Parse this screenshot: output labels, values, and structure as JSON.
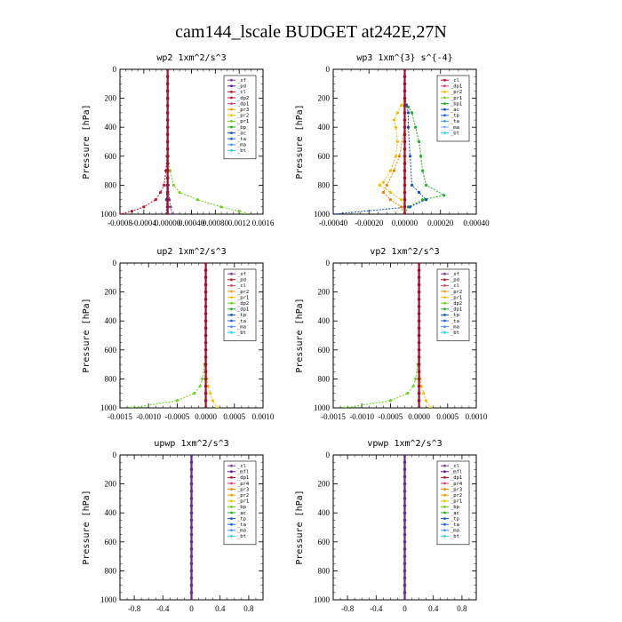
{
  "page_title": "cam144_lscale  BUDGET at242E,27N",
  "chart_data": [
    {
      "type": "line",
      "title": "wp2   1xm^2/s^3",
      "ylabel": "Pressure [hPa]",
      "ylim": [
        1000,
        0
      ],
      "yticks": [
        "0",
        "200",
        "400",
        "600",
        "800",
        "1000"
      ],
      "xlim": [
        -0.0008,
        0.0016
      ],
      "xticks": [
        "-0.0008",
        "-0.0004",
        "0.00000",
        "0.00040",
        "0.00080",
        "0.0012",
        "0.0016"
      ],
      "legend": [
        {
          "name": "_sf",
          "color": "#7b3fa0"
        },
        {
          "name": "_pd",
          "color": "#5a1a8a"
        },
        {
          "name": "_cl",
          "color": "#c0102a"
        },
        {
          "name": "_dp2",
          "color": "#c0102a"
        },
        {
          "name": "_dp1",
          "color": "#e0406a"
        },
        {
          "name": "_pr3",
          "color": "#f0a000"
        },
        {
          "name": "_pr2",
          "color": "#f0c000"
        },
        {
          "name": "_pr1",
          "color": "#70d020"
        },
        {
          "name": "_bp",
          "color": "#20b020"
        },
        {
          "name": "_ac",
          "color": "#1050c0"
        },
        {
          "name": "_ta",
          "color": "#2060e0"
        },
        {
          "name": "_ma",
          "color": "#5090ff"
        },
        {
          "name": "_bt",
          "color": "#30d0e0"
        }
      ],
      "series": [
        {
          "name": "_cl",
          "color": "#c0102a",
          "y": [
            0,
            200,
            400,
            600,
            700,
            800,
            850,
            900,
            950,
            980,
            1000
          ],
          "x": [
            0,
            0,
            0,
            -1e-05,
            -3e-05,
            -6e-05,
            -0.00012,
            -0.0002,
            -0.0004,
            -0.0006,
            -0.0008
          ]
        },
        {
          "name": "_pr1",
          "color": "#70d020",
          "y": [
            0,
            200,
            400,
            600,
            700,
            800,
            850,
            900,
            950,
            980,
            1000
          ],
          "x": [
            0,
            0,
            0,
            1e-05,
            4e-05,
            0.0001,
            0.0002,
            0.0005,
            0.0009,
            0.0012,
            0.0013
          ]
        },
        {
          "name": "_sf",
          "color": "#7b3fa0",
          "y": [
            0,
            400,
            800,
            900,
            950,
            1000
          ],
          "x": [
            0,
            0,
            1e-05,
            3e-05,
            5e-05,
            8e-05
          ]
        },
        {
          "name": "_ac",
          "color": "#1050c0",
          "y": [
            0,
            600,
            800,
            900,
            1000
          ],
          "x": [
            0,
            0,
            -1e-05,
            -2e-05,
            -2e-05
          ]
        }
      ]
    },
    {
      "type": "line",
      "title": "wp3   1xm^{3} s^{-4}",
      "ylabel": "Pressure [hPa]",
      "ylim": [
        1000,
        0
      ],
      "yticks": [
        "0",
        "200",
        "400",
        "600",
        "800",
        "1000"
      ],
      "xlim": [
        -0.0004,
        0.0004
      ],
      "xticks": [
        "-0.00040",
        "-0.00020",
        "0.00000",
        "0.00020",
        "0.00040"
      ],
      "legend": [
        {
          "name": "_cl",
          "color": "#c0102a"
        },
        {
          "name": "_dp1",
          "color": "#e0406a"
        },
        {
          "name": "_pr2",
          "color": "#f0c000"
        },
        {
          "name": "_pr1",
          "color": "#70d020"
        },
        {
          "name": "_bp1",
          "color": "#20b020"
        },
        {
          "name": "_ac",
          "color": "#1050c0"
        },
        {
          "name": "_tp",
          "color": "#2060e0"
        },
        {
          "name": "_ta",
          "color": "#5090ff"
        },
        {
          "name": "_ma",
          "color": "#80a0ff"
        },
        {
          "name": "_bt",
          "color": "#30d0e0"
        }
      ],
      "series": [
        {
          "name": "_pr1",
          "color": "#f0c000",
          "y": [
            0,
            200,
            250,
            300,
            350,
            400,
            500,
            600,
            700,
            780,
            800,
            850,
            900,
            950,
            1000
          ],
          "x": [
            0,
            0,
            -2e-05,
            -4e-05,
            -6e-05,
            -5e-05,
            -4e-05,
            -5e-05,
            -8e-05,
            -0.00012,
            -0.00014,
            -8e-05,
            -2e-05,
            0,
            0
          ]
        },
        {
          "name": "_bp1",
          "color": "#20b020",
          "y": [
            0,
            200,
            260,
            300,
            400,
            500,
            600,
            700,
            800,
            870,
            900,
            950,
            1000
          ],
          "x": [
            0,
            0,
            2e-05,
            4e-05,
            6e-05,
            8e-05,
            9e-05,
            0.0001,
            0.00012,
            0.00022,
            0.0001,
            2e-05,
            0
          ]
        },
        {
          "name": "_ac",
          "color": "#1050c0",
          "y": [
            0,
            200,
            250,
            300,
            400,
            600,
            800,
            850,
            900,
            950,
            1000
          ],
          "x": [
            0,
            0,
            1e-05,
            2e-05,
            2e-05,
            3e-05,
            4e-05,
            8e-05,
            0.00012,
            3e-05,
            -0.0004
          ]
        },
        {
          "name": "_dp1",
          "color": "#f08000",
          "y": [
            0,
            400,
            600,
            700,
            800,
            850,
            900,
            950,
            1000
          ],
          "x": [
            0,
            0,
            -3e-05,
            -6e-05,
            -0.0001,
            -0.00012,
            -8e-05,
            -2e-05,
            0
          ]
        }
      ]
    },
    {
      "type": "line",
      "title": "up2   1xm^2/s^3",
      "ylabel": "Pressure [hPa]",
      "ylim": [
        1000,
        0
      ],
      "yticks": [
        "0",
        "200",
        "400",
        "600",
        "800",
        "1000"
      ],
      "xlim": [
        -0.0015,
        0.001
      ],
      "xticks": [
        "-0.0015",
        "-0.0010",
        "-0.0005",
        "0.0000",
        "0.0005",
        "0.0010"
      ],
      "legend": [
        {
          "name": "_sf",
          "color": "#7b3fa0"
        },
        {
          "name": "_pd",
          "color": "#c0102a"
        },
        {
          "name": "_cl",
          "color": "#e0406a"
        },
        {
          "name": "_pr2",
          "color": "#f0a000"
        },
        {
          "name": "_pr1",
          "color": "#f0c000"
        },
        {
          "name": "_dp2",
          "color": "#70d020"
        },
        {
          "name": "_dp1",
          "color": "#20b020"
        },
        {
          "name": "_tp",
          "color": "#1050c0"
        },
        {
          "name": "_ta",
          "color": "#2060e0"
        },
        {
          "name": "_ma",
          "color": "#5090ff"
        },
        {
          "name": "_bt",
          "color": "#30d0e0"
        }
      ],
      "series": [
        {
          "name": "_dp1",
          "color": "#70d020",
          "y": [
            0,
            400,
            600,
            700,
            800,
            850,
            900,
            950,
            1000
          ],
          "x": [
            0,
            0,
            0,
            -2e-05,
            -6e-05,
            -0.0001,
            -0.0002,
            -0.0005,
            -0.0013
          ]
        },
        {
          "name": "_pr1",
          "color": "#f0c000",
          "y": [
            0,
            600,
            800,
            850,
            900,
            950,
            1000
          ],
          "x": [
            0,
            0,
            2e-05,
            4e-05,
            8e-05,
            0.00012,
            0.0002
          ]
        },
        {
          "name": "_pd",
          "color": "#c0102a",
          "y": [
            0,
            1000
          ],
          "x": [
            0,
            0
          ]
        }
      ]
    },
    {
      "type": "line",
      "title": "vp2   1xm^2/s^3",
      "ylabel": "Pressure [hPa]",
      "ylim": [
        1000,
        0
      ],
      "yticks": [
        "0",
        "200",
        "400",
        "600",
        "800",
        "1000"
      ],
      "xlim": [
        -0.0015,
        0.001
      ],
      "xticks": [
        "-0.0015",
        "-0.0010",
        "-0.0005",
        "0.0000",
        "0.0005",
        "0.0010"
      ],
      "legend": [
        {
          "name": "_sf",
          "color": "#7b3fa0"
        },
        {
          "name": "_pd",
          "color": "#c0102a"
        },
        {
          "name": "_cl",
          "color": "#e0406a"
        },
        {
          "name": "_pr2",
          "color": "#f0a000"
        },
        {
          "name": "_pr1",
          "color": "#f0c000"
        },
        {
          "name": "_dp2",
          "color": "#70d020"
        },
        {
          "name": "_dp1",
          "color": "#20b020"
        },
        {
          "name": "_tp",
          "color": "#1050c0"
        },
        {
          "name": "_ta",
          "color": "#2060e0"
        },
        {
          "name": "_ma",
          "color": "#5090ff"
        },
        {
          "name": "_bt",
          "color": "#30d0e0"
        }
      ],
      "series": [
        {
          "name": "_dp1",
          "color": "#70d020",
          "y": [
            0,
            400,
            600,
            700,
            800,
            850,
            900,
            950,
            1000
          ],
          "x": [
            0,
            0,
            0,
            -2e-05,
            -6e-05,
            -0.0001,
            -0.0002,
            -0.0005,
            -0.0013
          ]
        },
        {
          "name": "_pr1",
          "color": "#f0c000",
          "y": [
            0,
            600,
            800,
            850,
            900,
            950,
            1000
          ],
          "x": [
            0,
            0,
            2e-05,
            4e-05,
            8e-05,
            0.00012,
            0.0002
          ]
        },
        {
          "name": "_pd",
          "color": "#c0102a",
          "y": [
            0,
            1000
          ],
          "x": [
            0,
            0
          ]
        }
      ]
    },
    {
      "type": "line",
      "title": "upwp   1xm^2/s^3",
      "ylabel": "Pressure [hPa]",
      "ylim": [
        1000,
        0
      ],
      "yticks": [
        "0",
        "200",
        "400",
        "600",
        "800",
        "1000"
      ],
      "xlim": [
        -1,
        1
      ],
      "xticks": [
        "-0.8",
        "-0.4",
        "0",
        "0.4",
        "0.8"
      ],
      "legend": [
        {
          "name": "_cl",
          "color": "#7b3fa0"
        },
        {
          "name": "_mfl",
          "color": "#5a1a8a"
        },
        {
          "name": "_dp1",
          "color": "#c0102a"
        },
        {
          "name": "_pr4",
          "color": "#e0406a"
        },
        {
          "name": "_pr3",
          "color": "#f08000"
        },
        {
          "name": "_pr2",
          "color": "#f0a000"
        },
        {
          "name": "_pr1",
          "color": "#f0c000"
        },
        {
          "name": "_bp",
          "color": "#70d020"
        },
        {
          "name": "_ac",
          "color": "#20b020"
        },
        {
          "name": "_tp",
          "color": "#1050c0"
        },
        {
          "name": "_ta",
          "color": "#2060e0"
        },
        {
          "name": "_ma",
          "color": "#5090ff"
        },
        {
          "name": "_bt",
          "color": "#30d0e0"
        }
      ],
      "series": [
        {
          "name": "_cl",
          "color": "#7b3fa0",
          "y": [
            0,
            1000
          ],
          "x": [
            0,
            0
          ]
        }
      ]
    },
    {
      "type": "line",
      "title": "vpwp   1xm^2/s^3",
      "ylabel": "Pressure [hPa]",
      "ylim": [
        1000,
        0
      ],
      "yticks": [
        "0",
        "200",
        "400",
        "600",
        "800",
        "1000"
      ],
      "xlim": [
        -1,
        1
      ],
      "xticks": [
        "-0.8",
        "-0.4",
        "0",
        "0.4",
        "0.8"
      ],
      "legend": [
        {
          "name": "_cl",
          "color": "#7b3fa0"
        },
        {
          "name": "_mfl",
          "color": "#5a1a8a"
        },
        {
          "name": "_dp1",
          "color": "#c0102a"
        },
        {
          "name": "_pr4",
          "color": "#e0406a"
        },
        {
          "name": "_pr3",
          "color": "#f08000"
        },
        {
          "name": "_pr2",
          "color": "#f0a000"
        },
        {
          "name": "_pr1",
          "color": "#f0c000"
        },
        {
          "name": "_bp",
          "color": "#70d020"
        },
        {
          "name": "_ac",
          "color": "#20b020"
        },
        {
          "name": "_tp",
          "color": "#1050c0"
        },
        {
          "name": "_ta",
          "color": "#2060e0"
        },
        {
          "name": "_ma",
          "color": "#5090ff"
        },
        {
          "name": "_bt",
          "color": "#30d0e0"
        }
      ],
      "series": [
        {
          "name": "_cl",
          "color": "#7b3fa0",
          "y": [
            0,
            1000
          ],
          "x": [
            0,
            0
          ]
        }
      ]
    }
  ]
}
